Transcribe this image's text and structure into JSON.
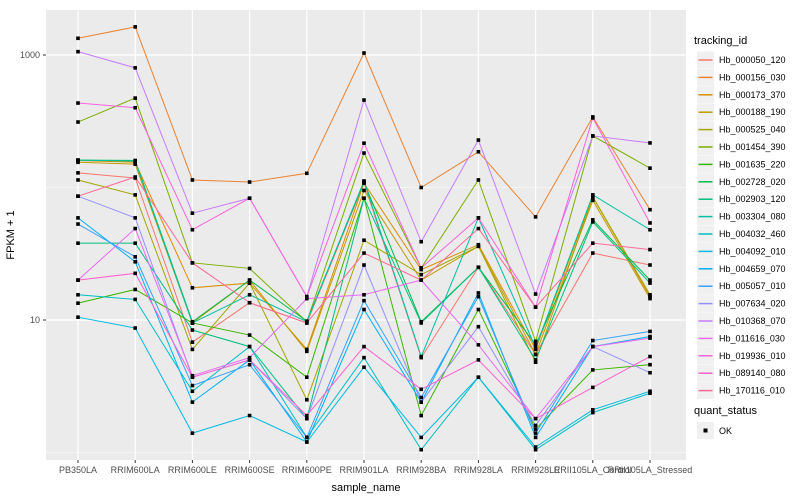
{
  "figure": {
    "panel_bg": "#EBEBEB",
    "grid_color": "#FFFFFF",
    "tick_color": "#333333",
    "tick_label_color": "#4D4D4D"
  },
  "chart_data": {
    "type": "line",
    "scale": "log10",
    "title": "",
    "xlabel": "sample_name",
    "ylabel": "FPKM + 1",
    "yticks": [
      10,
      1000
    ],
    "ytick_labels": [
      "10",
      "1000"
    ],
    "minor_gridlines_at": [
      1,
      100
    ],
    "ylim_px_note": "log scale, 10 at y=320px, 1000 at y=55px",
    "grid": true,
    "legend_position": "right",
    "legend_title": "tracking_id",
    "quant_legend": {
      "title": "quant_status",
      "items": [
        {
          "label": "OK",
          "marker": "black-square-point"
        }
      ]
    },
    "categories": [
      "PB350LA",
      "RRIM600LA",
      "RRIM600LE",
      "RRIM600SE",
      "RRIM600PE",
      "RRIM901LA",
      "RRIM928BA",
      "RRIM928LA",
      "RRIM928LE",
      "RRII105LA_Control",
      "RRII105LA_Stressed"
    ],
    "series": [
      {
        "name": "Hb_000050_120",
        "color": "#F8766D",
        "values": [
          129,
          118,
          6.8,
          13.5,
          9.5,
          108,
          5.2,
          25,
          5.5,
          32,
          26
        ]
      },
      {
        "name": "Hb_000156_030",
        "color": "#EA8331",
        "values": [
          1337,
          1630,
          114,
          110,
          128,
          1035,
          100,
          186,
          60,
          341,
          68
        ]
      },
      {
        "name": "Hb_000173_370",
        "color": "#D89000",
        "values": [
          160,
          155,
          17.5,
          19,
          6.0,
          108,
          24,
          37,
          6.0,
          85,
          15
        ]
      },
      {
        "name": "Hb_000188_190",
        "color": "#C09B00",
        "values": [
          155,
          150,
          9.5,
          20,
          5.8,
          95,
          20,
          36,
          5.5,
          80,
          14.5
        ]
      },
      {
        "name": "Hb_000525_040",
        "color": "#A3A500",
        "values": [
          114,
          88,
          6.0,
          19,
          2.5,
          40,
          22,
          36,
          4.8,
          85,
          15.5
        ]
      },
      {
        "name": "Hb_001454_390",
        "color": "#7CAE00",
        "values": [
          312,
          473,
          27,
          24.5,
          9.7,
          182,
          24.7,
          114,
          6.9,
          245,
          140
        ]
      },
      {
        "name": "Hb_001635_220",
        "color": "#39B600",
        "values": [
          13.4,
          17,
          9.5,
          7.7,
          3.7,
          83,
          1.9,
          12,
          1.5,
          4.2,
          4.6
        ]
      },
      {
        "name": "Hb_002728_020",
        "color": "#00BB4E",
        "values": [
          161,
          160,
          9.7,
          20,
          9.8,
          110,
          9.7,
          25,
          6.5,
          57,
          20
        ]
      },
      {
        "name": "Hb_002903_120",
        "color": "#00BF7D",
        "values": [
          38,
          38,
          8.4,
          6.3,
          1.8,
          83,
          9.5,
          25,
          5.0,
          55,
          19
        ]
      },
      {
        "name": "Hb_003304_080",
        "color": "#00C1A3",
        "values": [
          161,
          158,
          9.5,
          15.5,
          9.7,
          112,
          5.3,
          59,
          6.2,
          88,
          48
        ]
      },
      {
        "name": "Hb_004032_460",
        "color": "#00BFC4",
        "values": [
          15.5,
          14.3,
          2.9,
          6.3,
          1.3,
          5.2,
          1.05,
          3.7,
          1.05,
          2.0,
          2.8
        ]
      },
      {
        "name": "Hb_004092_010",
        "color": "#00BAE0",
        "values": [
          10.5,
          8.7,
          1.4,
          1.9,
          1.2,
          4.4,
          1.3,
          3.7,
          1.1,
          2.1,
          2.9
        ]
      },
      {
        "name": "Hb_004659_070",
        "color": "#00B0F6",
        "values": [
          59,
          27.5,
          2.4,
          5.0,
          1.2,
          12,
          2.4,
          16,
          1.3,
          6.3,
          7.5
        ]
      },
      {
        "name": "Hb_005057_010",
        "color": "#35A2FF",
        "values": [
          53,
          30,
          3.2,
          4.6,
          1.3,
          14,
          2.6,
          15,
          1.4,
          7.0,
          8.2
        ]
      },
      {
        "name": "Hb_007634_020",
        "color": "#9590FF",
        "values": [
          86,
          59,
          3.7,
          5.0,
          1.8,
          26,
          2.4,
          8.9,
          1.6,
          6.3,
          4.0
        ]
      },
      {
        "name": "Hb_010368_070",
        "color": "#C77CFF",
        "values": [
          1060,
          800,
          64,
          83,
          15,
          457,
          39,
          228,
          15.7,
          245,
          217
        ]
      },
      {
        "name": "Hb_011616_030",
        "color": "#E76BF3",
        "values": [
          20,
          49,
          3.8,
          5.2,
          14.5,
          15.5,
          20,
          6.5,
          1.8,
          6.3,
          7.3
        ]
      },
      {
        "name": "Hb_019936_010",
        "color": "#FA62DB",
        "values": [
          434,
          400,
          48,
          83,
          15,
          216,
          24.7,
          59,
          12.5,
          335,
          54
        ]
      },
      {
        "name": "Hb_089140_080",
        "color": "#FF61CC",
        "values": [
          20,
          22.5,
          3.7,
          5.0,
          1.9,
          6.3,
          3.0,
          5.0,
          1.8,
          3.1,
          5.3
        ]
      },
      {
        "name": "Hb_170116_010",
        "color": "#FF6A98",
        "values": [
          86,
          120,
          27,
          13.5,
          9.5,
          32,
          20,
          49,
          12.5,
          38,
          34
        ]
      }
    ]
  }
}
